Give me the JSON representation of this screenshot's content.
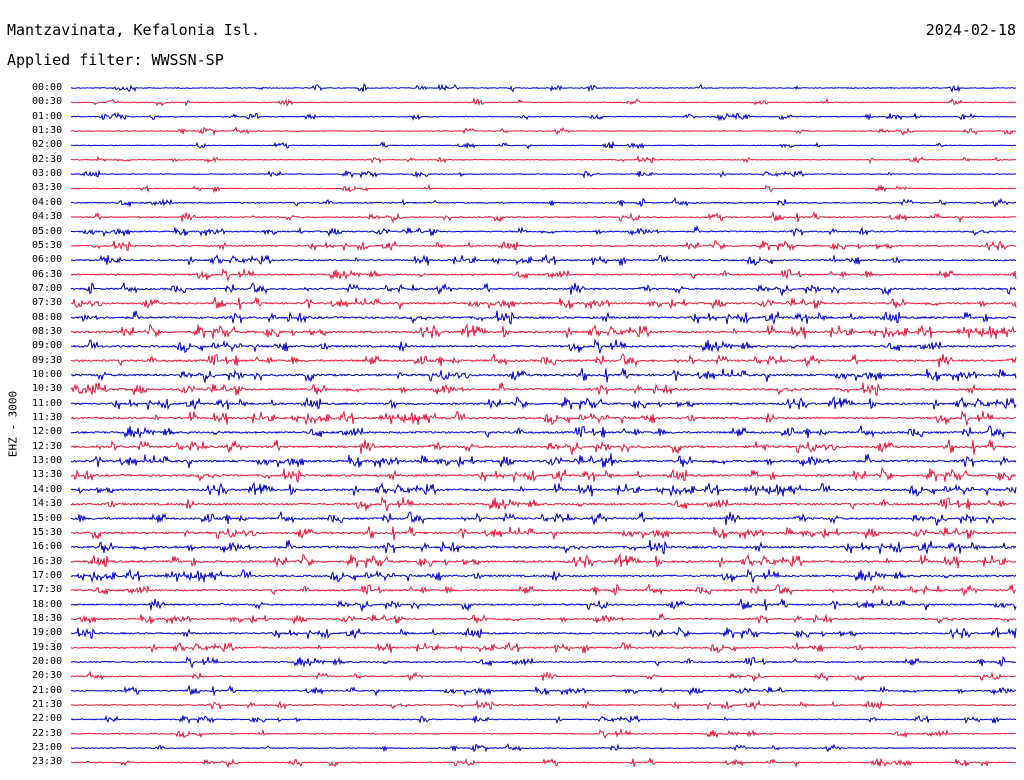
{
  "header": {
    "station": "Mantzavinata, Kefalonia Isl.",
    "filter": "Applied filter: WWSSN-SP",
    "date": "2024-02-18"
  },
  "channel_label": "EHZ - 3000",
  "trace_colors": [
    "#0000cc",
    "#e8183c"
  ],
  "rows": [
    {
      "time": "00:00",
      "activity": 0.12
    },
    {
      "time": "00:30",
      "activity": 0.08
    },
    {
      "time": "01:00",
      "activity": 0.1
    },
    {
      "time": "01:30",
      "activity": 0.08
    },
    {
      "time": "02:00",
      "activity": 0.03
    },
    {
      "time": "02:30",
      "activity": 0.04
    },
    {
      "time": "03:00",
      "activity": 0.05
    },
    {
      "time": "03:30",
      "activity": 0.04
    },
    {
      "time": "04:00",
      "activity": 0.25
    },
    {
      "time": "04:30",
      "activity": 0.3
    },
    {
      "time": "05:00",
      "activity": 0.35
    },
    {
      "time": "05:30",
      "activity": 0.4
    },
    {
      "time": "06:00",
      "activity": 0.45
    },
    {
      "time": "06:30",
      "activity": 0.5
    },
    {
      "time": "07:00",
      "activity": 0.55
    },
    {
      "time": "07:30",
      "activity": 0.6
    },
    {
      "time": "08:00",
      "activity": 0.75
    },
    {
      "time": "08:30",
      "activity": 0.8
    },
    {
      "time": "09:00",
      "activity": 0.7
    },
    {
      "time": "09:30",
      "activity": 0.7
    },
    {
      "time": "10:00",
      "activity": 0.75
    },
    {
      "time": "10:30",
      "activity": 0.7
    },
    {
      "time": "11:00",
      "activity": 0.65
    },
    {
      "time": "11:30",
      "activity": 0.75
    },
    {
      "time": "12:00",
      "activity": 0.7
    },
    {
      "time": "12:30",
      "activity": 0.8
    },
    {
      "time": "13:00",
      "activity": 0.8
    },
    {
      "time": "13:30",
      "activity": 0.75
    },
    {
      "time": "14:00",
      "activity": 0.7
    },
    {
      "time": "14:30",
      "activity": 0.75
    },
    {
      "time": "15:00",
      "activity": 0.7
    },
    {
      "time": "15:30",
      "activity": 0.7
    },
    {
      "time": "16:00",
      "activity": 0.8
    },
    {
      "time": "16:30",
      "activity": 0.75
    },
    {
      "time": "17:00",
      "activity": 0.65
    },
    {
      "time": "17:30",
      "activity": 0.55
    },
    {
      "time": "18:00",
      "activity": 0.5
    },
    {
      "time": "18:30",
      "activity": 0.45
    },
    {
      "time": "19:00",
      "activity": 0.5
    },
    {
      "time": "19:30",
      "activity": 0.45
    },
    {
      "time": "20:00",
      "activity": 0.4
    },
    {
      "time": "20:30",
      "activity": 0.25
    },
    {
      "time": "21:00",
      "activity": 0.3
    },
    {
      "time": "21:30",
      "activity": 0.3
    },
    {
      "time": "22:00",
      "activity": 0.15
    },
    {
      "time": "22:30",
      "activity": 0.2
    },
    {
      "time": "23:00",
      "activity": 0.15
    },
    {
      "time": "23:30",
      "activity": 0.2
    }
  ]
}
